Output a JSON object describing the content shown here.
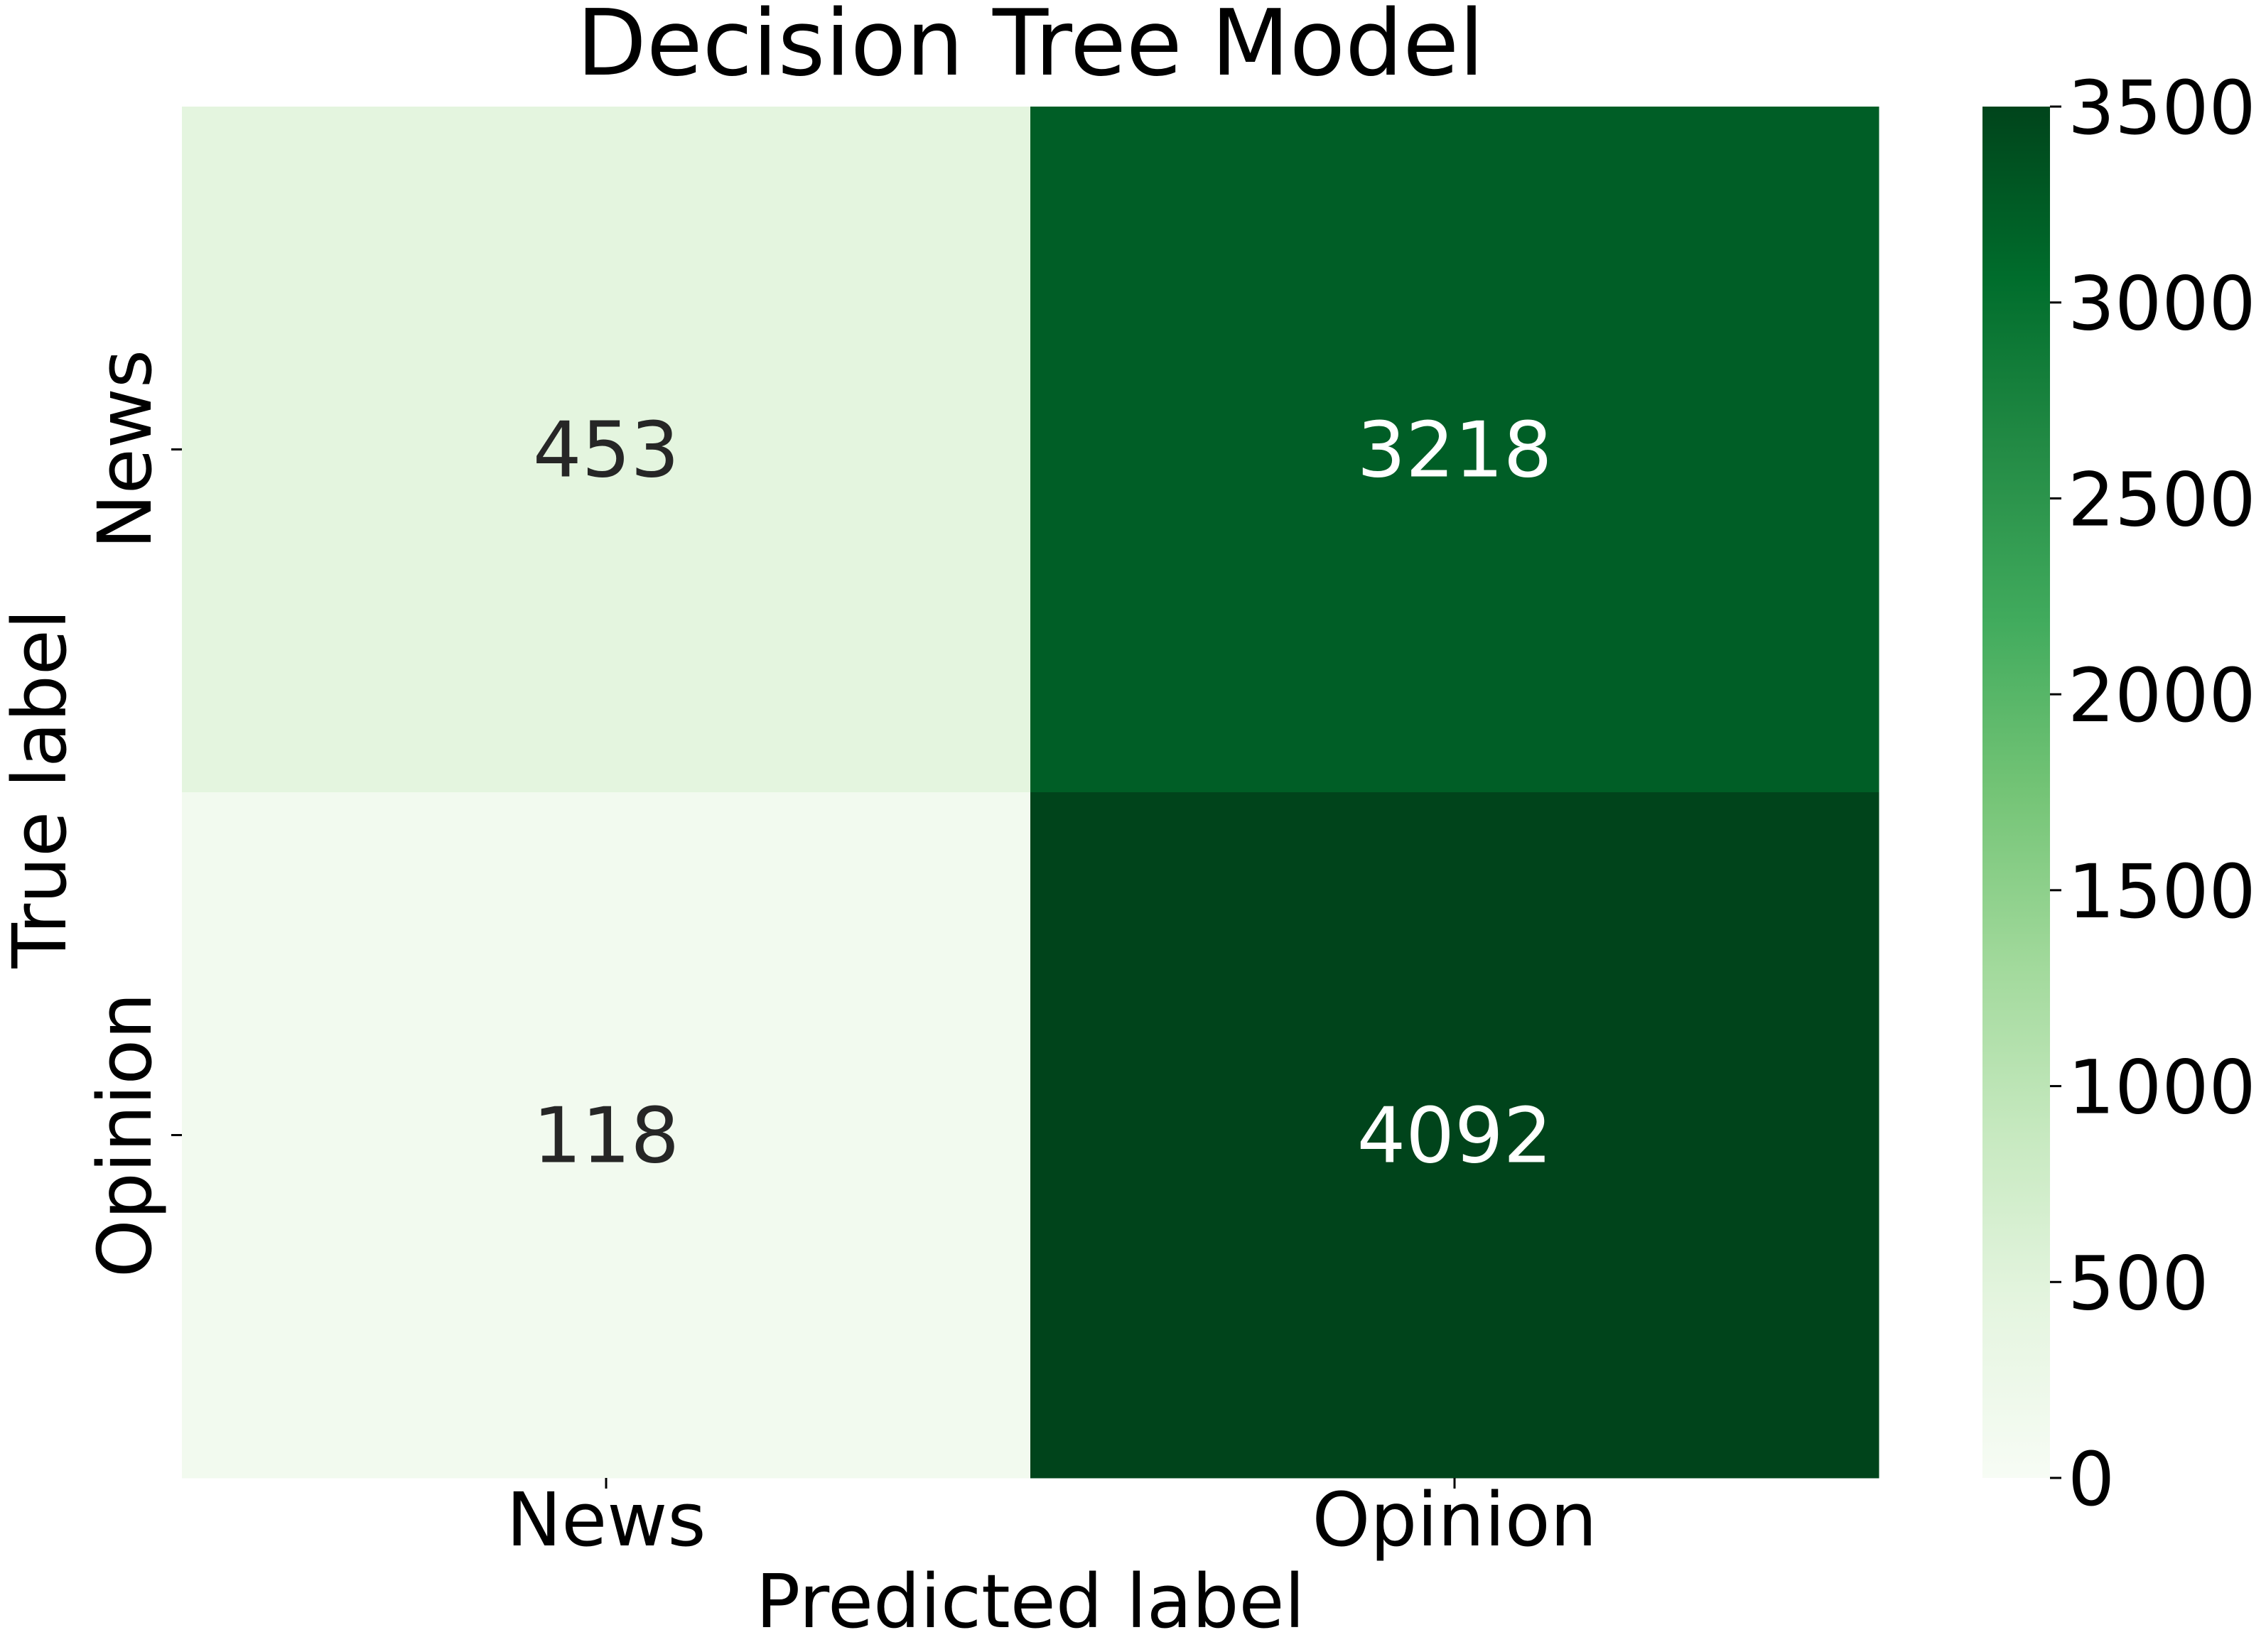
{
  "chart_data": {
    "type": "heatmap",
    "title": "Decision Tree Model",
    "xlabel": "Predicted label",
    "ylabel": "True label",
    "x_categories": [
      "News",
      "Opinion"
    ],
    "y_categories": [
      "News",
      "Opinion"
    ],
    "values": [
      [
        453,
        3218
      ],
      [
        118,
        4092
      ]
    ],
    "colorbar": {
      "colormap": "Greens",
      "range": [
        0,
        3500
      ],
      "ticks": [
        0,
        500,
        1000,
        1500,
        2000,
        2500,
        3000,
        3500
      ]
    },
    "grid": false
  },
  "colors": {
    "text_on_light": "#262626",
    "text_on_dark": "#ffffff",
    "axis": "#000000"
  }
}
